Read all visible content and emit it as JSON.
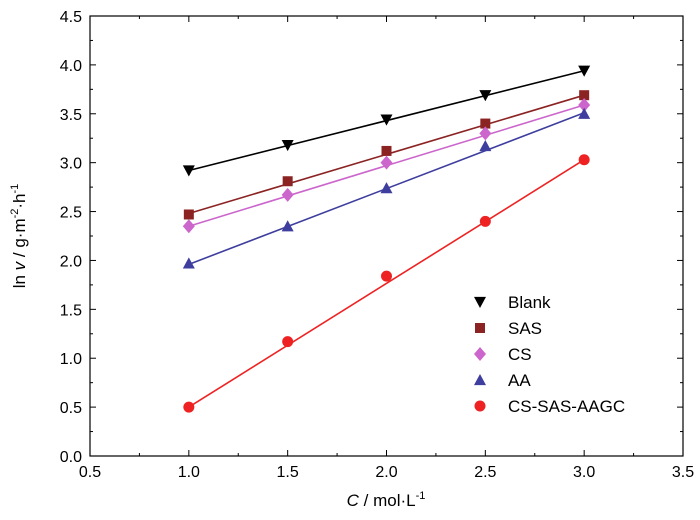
{
  "chart_data": {
    "type": "scatter",
    "title": "",
    "xlabel": {
      "var": "C",
      "rest": " / mol·L",
      "sup": "-1"
    },
    "ylabel": {
      "pre": "ln ",
      "var": "v",
      "mid": " / g·m",
      "sup1": "-2",
      "mid2": "·h",
      "sup2": "-1"
    },
    "xlim": [
      0.5,
      3.5
    ],
    "ylim": [
      0.0,
      4.5
    ],
    "x_ticks": [
      "0.5",
      "1.0",
      "1.5",
      "2.0",
      "2.5",
      "3.0",
      "3.5"
    ],
    "y_ticks": [
      "0.0",
      "0.5",
      "1.0",
      "1.5",
      "2.0",
      "2.5",
      "3.0",
      "3.5",
      "4.0",
      "4.5"
    ],
    "grid": false,
    "legend_position": "bottom-right",
    "x": [
      1.0,
      1.5,
      2.0,
      2.5,
      3.0
    ],
    "series": [
      {
        "name": "Blank",
        "marker": "triangle-down",
        "color": "#000000",
        "values": [
          2.92,
          3.18,
          3.44,
          3.69,
          3.94
        ],
        "fit": [
          2.92,
          3.94
        ]
      },
      {
        "name": "SAS",
        "marker": "square",
        "color": "#8B2323",
        "values": [
          2.47,
          2.81,
          3.12,
          3.4,
          3.69
        ],
        "fit": [
          2.48,
          3.69
        ]
      },
      {
        "name": "CS",
        "marker": "diamond",
        "color": "#CC66CC",
        "values": [
          2.35,
          2.67,
          3.0,
          3.3,
          3.59
        ],
        "fit": [
          2.35,
          3.59
        ]
      },
      {
        "name": "AA",
        "marker": "triangle-up",
        "color": "#3E3E9E",
        "values": [
          1.97,
          2.35,
          2.74,
          3.17,
          3.5
        ],
        "fit": [
          1.96,
          3.51
        ]
      },
      {
        "name": "CS-SAS-AAGC",
        "marker": "circle",
        "color": "#EE2222",
        "values": [
          0.5,
          1.17,
          1.84,
          2.4,
          3.03
        ],
        "fit": [
          0.5,
          3.03
        ]
      }
    ]
  }
}
